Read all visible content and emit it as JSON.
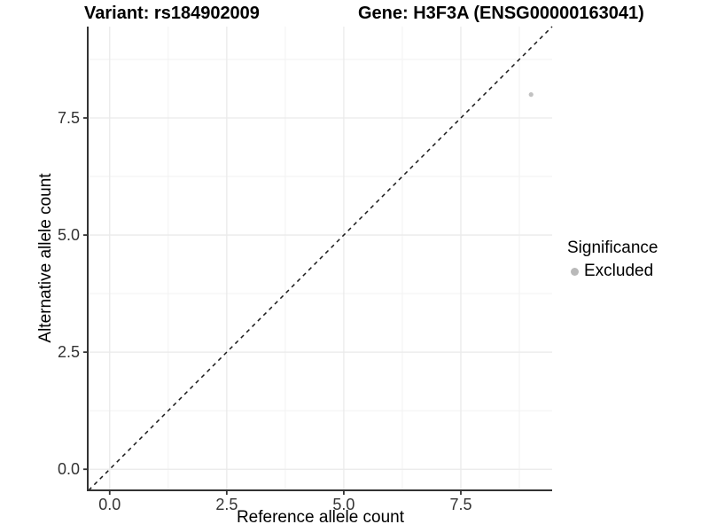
{
  "titles": {
    "variant": "Variant: rs184902009",
    "gene": "Gene: H3F3A (ENSG00000163041)"
  },
  "chart_data": {
    "type": "scatter",
    "xlabel": "Reference allele count",
    "ylabel": "Alternative allele count",
    "xlim": [
      -0.45,
      9.45
    ],
    "ylim": [
      -0.45,
      9.45
    ],
    "xticks": [
      0,
      2.5,
      5,
      7.5
    ],
    "xtick_labels": [
      "0.0",
      "2.5",
      "5.0",
      "7.5"
    ],
    "yticks": [
      0,
      2.5,
      5,
      7.5
    ],
    "ytick_labels": [
      "0.0",
      "2.5",
      "5.0",
      "7.5"
    ],
    "xticks_minor": [
      1.25,
      3.75,
      6.25,
      8.75
    ],
    "yticks_minor": [
      1.25,
      3.75,
      6.25,
      8.75
    ],
    "grid": "major+minor",
    "points": [
      {
        "x": 9,
        "y": 8,
        "series": "Excluded"
      }
    ],
    "reference_line": {
      "slope": 1,
      "intercept": 0,
      "style": "dashed",
      "color": "#1a1a1a"
    },
    "legend": {
      "title": "Significance",
      "position": "right",
      "items": [
        {
          "label": "Excluded",
          "color": "#b9b9b9",
          "marker": "circle"
        }
      ]
    },
    "style": {
      "point_color": "#c2c2c2",
      "point_radius": 2.6,
      "grid_major_color": "#eaeaea",
      "grid_minor_color": "#f2f2f2",
      "axis_color": "#333333",
      "tick_color": "#333333"
    }
  }
}
